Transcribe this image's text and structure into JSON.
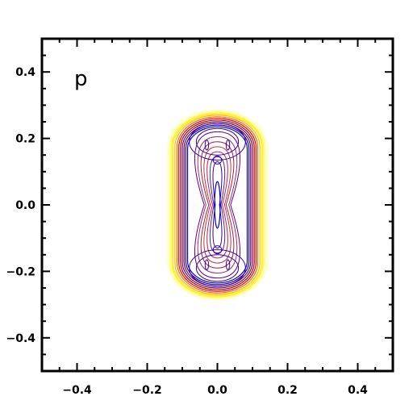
{
  "chart_data": {
    "type": "contour",
    "panel_label": "p",
    "xlim": [
      -0.5,
      0.5
    ],
    "ylim": [
      -0.5,
      0.5
    ],
    "x_ticks": [
      -0.4,
      -0.2,
      0.0,
      0.2,
      0.4
    ],
    "y_ticks": [
      -0.4,
      -0.2,
      0.0,
      0.2,
      0.4
    ],
    "x_tick_labels": [
      "−0.4",
      "−0.2",
      "0.0",
      "0.2",
      "0.4"
    ],
    "y_tick_labels": [
      "0.4",
      "0.2",
      "0.0",
      "−0.2",
      "−0.4"
    ],
    "minor_tick_step": 0.05,
    "grid": false,
    "shape": {
      "center": [
        0.0,
        0.0
      ],
      "half_width": 0.115,
      "half_height": 0.27,
      "description": "capsule-shaped region"
    },
    "outer_contours": [
      {
        "half_width": 0.142,
        "half_height": 0.285,
        "color": "#ffffdd"
      },
      {
        "half_width": 0.135,
        "half_height": 0.28,
        "color": "#ffff99"
      },
      {
        "half_width": 0.128,
        "half_height": 0.275,
        "color": "#ffee44"
      },
      {
        "half_width": 0.121,
        "half_height": 0.27,
        "color": "#ffbb00"
      },
      {
        "half_width": 0.115,
        "half_height": 0.265,
        "color": "#ff6600"
      },
      {
        "half_width": 0.11,
        "half_height": 0.26,
        "color": "#dd1100"
      },
      {
        "half_width": 0.105,
        "half_height": 0.255,
        "color": "#aa0022"
      },
      {
        "half_width": 0.1,
        "half_height": 0.25,
        "color": "#7a003a"
      },
      {
        "half_width": 0.095,
        "half_height": 0.245,
        "color": "#4a0060"
      },
      {
        "half_width": 0.09,
        "half_height": 0.24,
        "color": "#2a0090"
      },
      {
        "half_width": 0.085,
        "half_height": 0.235,
        "color": "#0000cc"
      }
    ],
    "inner_contours": [
      {
        "half_width": 0.075,
        "half_height": 0.22,
        "waist": 0.5,
        "color": "#660088"
      },
      {
        "half_width": 0.065,
        "half_height": 0.205,
        "waist": 0.5,
        "color": "#993366"
      },
      {
        "half_width": 0.055,
        "half_height": 0.19,
        "waist": 0.45,
        "color": "#aa2244"
      },
      {
        "half_width": 0.045,
        "half_height": 0.175,
        "waist": 0.45,
        "color": "#cc3333"
      },
      {
        "half_width": 0.035,
        "half_height": 0.16,
        "waist": 0.4,
        "color": "#bb2255"
      },
      {
        "half_width": 0.025,
        "half_height": 0.145,
        "waist": 0.4,
        "color": "#552299"
      },
      {
        "half_width": 0.015,
        "half_height": 0.13,
        "waist": 0.4,
        "color": "#3300aa"
      }
    ],
    "cap_contours": [
      {
        "cx": 0.0,
        "cy": 0.19,
        "rx": 0.08,
        "ry": 0.055,
        "color": "#3300aa"
      },
      {
        "cx": 0.0,
        "cy": 0.19,
        "rx": 0.06,
        "ry": 0.04,
        "color": "#3300aa"
      },
      {
        "cx": 0.0,
        "cy": -0.19,
        "rx": 0.08,
        "ry": 0.055,
        "color": "#3300aa"
      },
      {
        "cx": 0.0,
        "cy": -0.19,
        "rx": 0.06,
        "ry": 0.04,
        "color": "#3300aa"
      },
      {
        "cx": 0.0,
        "cy": 0.135,
        "rx": 0.012,
        "ry": 0.012,
        "color": "#3300aa"
      },
      {
        "cx": 0.0,
        "cy": -0.135,
        "rx": 0.012,
        "ry": 0.012,
        "color": "#3300aa"
      },
      {
        "cx": -0.03,
        "cy": 0.18,
        "rx": 0.005,
        "ry": 0.015,
        "color": "#3300aa"
      },
      {
        "cx": 0.03,
        "cy": 0.18,
        "rx": 0.005,
        "ry": 0.015,
        "color": "#3300aa"
      },
      {
        "cx": -0.03,
        "cy": -0.18,
        "rx": 0.005,
        "ry": 0.015,
        "color": "#3300aa"
      },
      {
        "cx": 0.03,
        "cy": -0.18,
        "rx": 0.005,
        "ry": 0.015,
        "color": "#3300aa"
      }
    ],
    "center_core": {
      "half_width": 0.008,
      "half_height": 0.07,
      "color": "#0000cc"
    }
  }
}
